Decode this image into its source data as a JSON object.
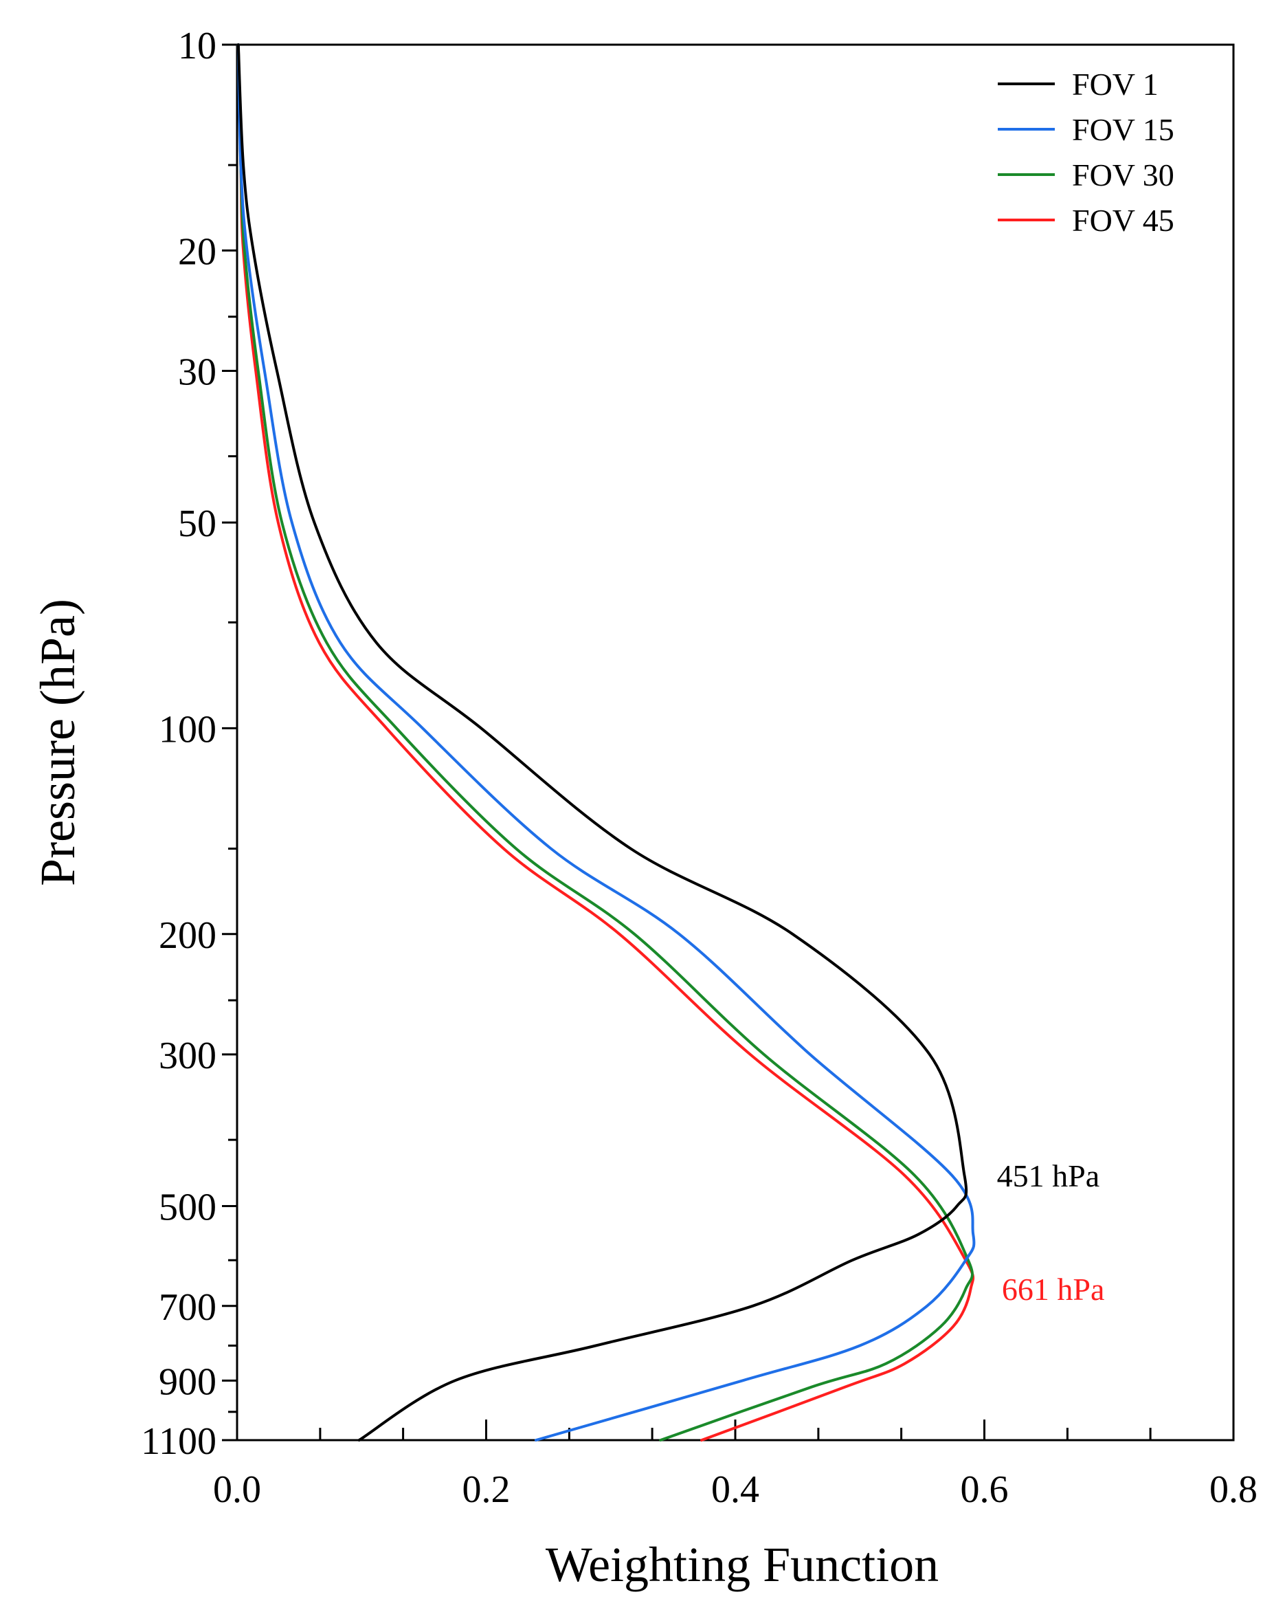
{
  "chart_data": {
    "type": "line",
    "title": "",
    "xlabel": "Weighting Function",
    "ylabel": "Pressure (hPa)",
    "xlim": [
      0.0,
      0.8
    ],
    "ylim": [
      10,
      1100
    ],
    "yscale": "log",
    "y_inverted": true,
    "grid": false,
    "legend_position": "top-right",
    "x_ticks": [
      {
        "value": 0.0,
        "label": "0.0"
      },
      {
        "value": 0.2,
        "label": "0.2"
      },
      {
        "value": 0.4,
        "label": "0.4"
      },
      {
        "value": 0.6,
        "label": "0.6"
      },
      {
        "value": 0.8,
        "label": "0.8"
      }
    ],
    "x_minor_ticks": [
      0.0667,
      0.1333,
      0.2667,
      0.3333,
      0.4667,
      0.5333,
      0.6667,
      0.7333
    ],
    "y_ticks": [
      {
        "value": 10,
        "label": "10"
      },
      {
        "value": 20,
        "label": "20"
      },
      {
        "value": 30,
        "label": "30"
      },
      {
        "value": 50,
        "label": "50"
      },
      {
        "value": 100,
        "label": "100"
      },
      {
        "value": 200,
        "label": "200"
      },
      {
        "value": 300,
        "label": "300"
      },
      {
        "value": 500,
        "label": "500"
      },
      {
        "value": 700,
        "label": "700"
      },
      {
        "value": 900,
        "label": "900"
      },
      {
        "value": 1100,
        "label": "1100"
      }
    ],
    "y_minor_ticks": [
      15,
      25,
      40,
      70,
      150,
      250,
      400,
      600,
      800,
      1000
    ],
    "series": [
      {
        "name": "FOV 1",
        "color": "#000000",
        "x": [
          0.001,
          0.005,
          0.013,
          0.032,
          0.062,
          0.112,
          0.196,
          0.316,
          0.446,
          0.556,
          0.584,
          0.578,
          0.547,
          0.494,
          0.414,
          0.288,
          0.175,
          0.098
        ],
        "y": [
          10,
          15,
          20,
          30,
          50,
          75,
          100,
          150,
          200,
          300,
          451,
          500,
          550,
          600,
          700,
          800,
          900,
          1100
        ]
      },
      {
        "name": "FOV 15",
        "color": "#1f6fe8",
        "x": [
          0.001,
          0.003,
          0.008,
          0.022,
          0.044,
          0.083,
          0.149,
          0.252,
          0.355,
          0.46,
          0.574,
          0.591,
          0.585,
          0.554,
          0.5,
          0.406,
          0.24
        ],
        "y": [
          10,
          15,
          20,
          30,
          50,
          75,
          100,
          150,
          200,
          300,
          451,
          550,
          600,
          700,
          800,
          900,
          1100
        ]
      },
      {
        "name": "FOV 30",
        "color": "#1a8a2a",
        "x": [
          0.001,
          0.003,
          0.006,
          0.017,
          0.036,
          0.072,
          0.128,
          0.224,
          0.319,
          0.423,
          0.544,
          0.587,
          0.585,
          0.565,
          0.521,
          0.461,
          0.34
        ],
        "y": [
          10,
          15,
          20,
          30,
          50,
          75,
          100,
          150,
          200,
          300,
          451,
          600,
          661,
          750,
          850,
          920,
          1100
        ]
      },
      {
        "name": "FOV 45",
        "color": "#ff1f1f",
        "x": [
          0.001,
          0.003,
          0.005,
          0.015,
          0.033,
          0.066,
          0.12,
          0.214,
          0.307,
          0.412,
          0.536,
          0.585,
          0.589,
          0.575,
          0.536,
          0.488,
          0.373
        ],
        "y": [
          10,
          15,
          20,
          30,
          50,
          75,
          100,
          150,
          200,
          300,
          451,
          600,
          661,
          750,
          850,
          920,
          1100
        ]
      }
    ],
    "annotations": [
      {
        "text": "451 hPa",
        "color": "#000000",
        "x": 0.61,
        "y": 451
      },
      {
        "text": "661 hPa",
        "color": "#ff1f1f",
        "x": 0.614,
        "y": 661
      }
    ]
  }
}
